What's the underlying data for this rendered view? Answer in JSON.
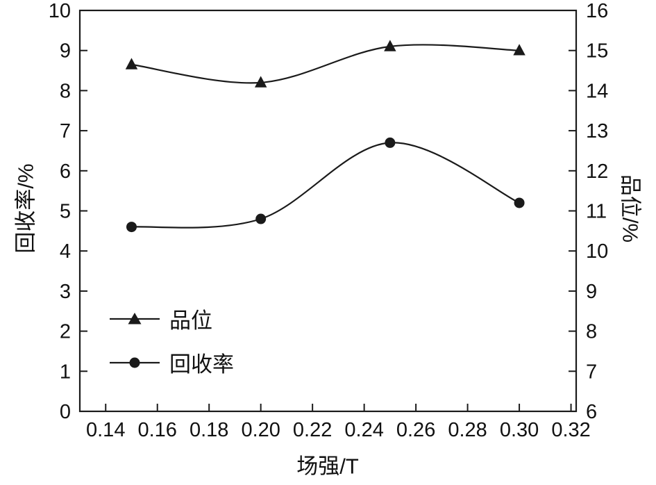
{
  "chart_data": {
    "type": "line",
    "x": [
      0.15,
      0.2,
      0.25,
      0.3
    ],
    "series": [
      {
        "name": "品位",
        "axis": "right",
        "marker": "triangle",
        "values": [
          14.65,
          14.2,
          15.1,
          15.0
        ]
      },
      {
        "name": "回收率",
        "axis": "left",
        "marker": "circle",
        "values": [
          4.6,
          4.8,
          6.7,
          5.2
        ]
      }
    ],
    "xlabel": "场强/T",
    "ylabel_left": "回收率/%",
    "ylabel_right": "品位/%",
    "xlim": [
      0.13,
      0.322
    ],
    "xticks": [
      0.14,
      0.16,
      0.18,
      0.2,
      0.22,
      0.24,
      0.26,
      0.28,
      0.3,
      0.32
    ],
    "ylim_left": [
      0,
      10
    ],
    "yticks_left": [
      0,
      1,
      2,
      3,
      4,
      5,
      6,
      7,
      8,
      9,
      10
    ],
    "ylim_right": [
      6,
      16
    ],
    "yticks_right": [
      6,
      7,
      8,
      9,
      10,
      11,
      12,
      13,
      14,
      15,
      16
    ],
    "line_color": "#1a1a1a",
    "grid": false,
    "legend_position": "lower-left",
    "legend": [
      {
        "label": "品位",
        "marker": "triangle"
      },
      {
        "label": "回收率",
        "marker": "circle"
      }
    ]
  }
}
